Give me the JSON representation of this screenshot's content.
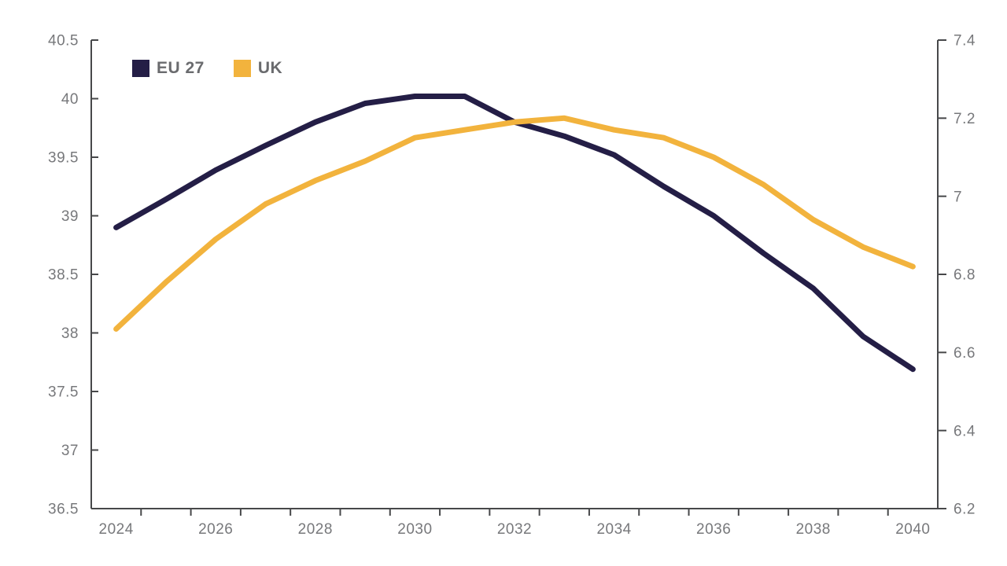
{
  "colors": {
    "eu_line": "#241e46",
    "uk_line": "#f2b33d",
    "axis_line": "#47484a",
    "tick_label": "#77787b",
    "legend_text": "#6a6b6e",
    "background": "#ffffff"
  },
  "legend": {
    "items": [
      {
        "label": "EU 27",
        "color": "#241e46"
      },
      {
        "label": "UK",
        "color": "#f2b33d"
      }
    ]
  },
  "chart_data": {
    "type": "line",
    "title": "",
    "xlabel": "",
    "ylabel_left": "",
    "ylabel_right": "",
    "grid": false,
    "legend_position": "top-left-inside",
    "x": [
      2024,
      2025,
      2026,
      2027,
      2028,
      2029,
      2030,
      2031,
      2032,
      2033,
      2034,
      2035,
      2036,
      2037,
      2038,
      2039,
      2040
    ],
    "x_tick_labels": [
      "2024",
      "2026",
      "2028",
      "2030",
      "2032",
      "2034",
      "2036",
      "2038",
      "2040"
    ],
    "left_axis": {
      "min": 36.5,
      "max": 40.5,
      "tick_labels": [
        "36.5",
        "37",
        "37.5",
        "38",
        "38.5",
        "39",
        "39.5",
        "40",
        "40.5"
      ],
      "tick_values": [
        36.5,
        37,
        37.5,
        38,
        38.5,
        39,
        39.5,
        40,
        40.5
      ]
    },
    "right_axis": {
      "min": 6.2,
      "max": 7.4,
      "tick_labels": [
        "6.2",
        "6.4",
        "6.6",
        "6.8",
        "7",
        "7.2",
        "7.4"
      ],
      "tick_values": [
        6.2,
        6.4,
        6.6,
        6.8,
        7.0,
        7.2,
        7.4
      ]
    },
    "series": [
      {
        "name": "EU 27",
        "axis": "left",
        "color": "#241e46",
        "values": [
          38.9,
          39.14,
          39.39,
          39.6,
          39.8,
          39.96,
          40.02,
          40.02,
          39.8,
          39.68,
          39.52,
          39.25,
          39.0,
          38.68,
          38.38,
          37.97,
          37.69
        ]
      },
      {
        "name": "UK",
        "axis": "right",
        "color": "#f2b33d",
        "values": [
          6.66,
          6.78,
          6.89,
          6.98,
          7.04,
          7.09,
          7.15,
          7.17,
          7.19,
          7.2,
          7.17,
          7.15,
          7.1,
          7.03,
          6.94,
          6.87,
          6.82
        ]
      }
    ]
  }
}
